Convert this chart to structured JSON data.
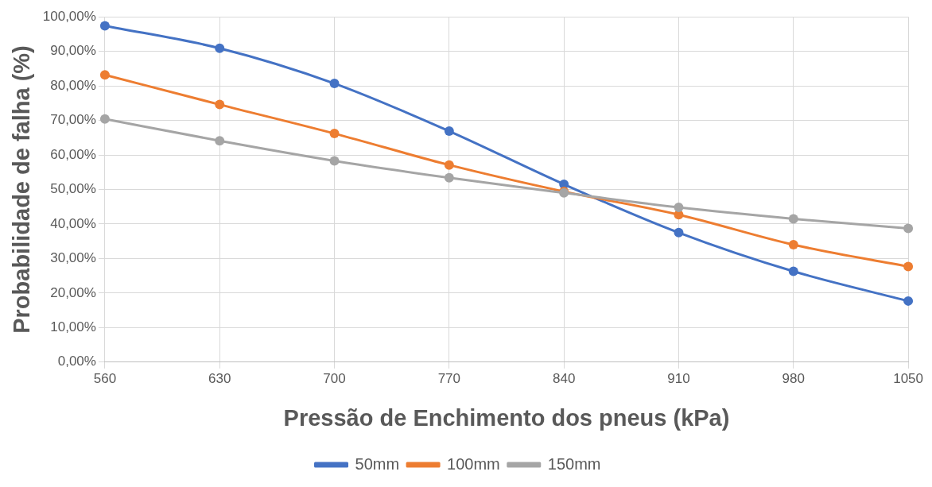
{
  "chart_data": {
    "type": "line",
    "xlabel": "Pressão de Enchimento dos pneus (kPa)",
    "ylabel": "Probabilidade de falha (%)",
    "categories": [
      "560",
      "630",
      "700",
      "770",
      "840",
      "910",
      "980",
      "1050"
    ],
    "series": [
      {
        "name": "50mm",
        "color": "#4472c4",
        "values": [
          97.4,
          90.9,
          80.7,
          66.9,
          51.5,
          37.5,
          26.3,
          17.7
        ]
      },
      {
        "name": "100mm",
        "color": "#ed7d31",
        "values": [
          83.2,
          74.6,
          66.2,
          57.1,
          49.4,
          42.7,
          34.0,
          27.7
        ]
      },
      {
        "name": "150mm",
        "color": "#a5a5a5",
        "values": [
          70.4,
          64.1,
          58.3,
          53.4,
          49.0,
          44.8,
          41.5,
          38.7
        ]
      }
    ],
    "ylim": [
      0,
      100
    ],
    "yticks": [
      {
        "value": 0,
        "label": "0,00%"
      },
      {
        "value": 10,
        "label": "10,00%"
      },
      {
        "value": 20,
        "label": "20,00%"
      },
      {
        "value": 30,
        "label": "30,00%"
      },
      {
        "value": 40,
        "label": "40,00%"
      },
      {
        "value": 50,
        "label": "50,00%"
      },
      {
        "value": 60,
        "label": "60,00%"
      },
      {
        "value": 70,
        "label": "70,00%"
      },
      {
        "value": 80,
        "label": "80,00%"
      },
      {
        "value": 90,
        "label": "90,00%"
      },
      {
        "value": 100,
        "label": "100,00%"
      }
    ],
    "grid": true,
    "legend": "bottom",
    "marker": "circle",
    "line_style": "solid"
  }
}
